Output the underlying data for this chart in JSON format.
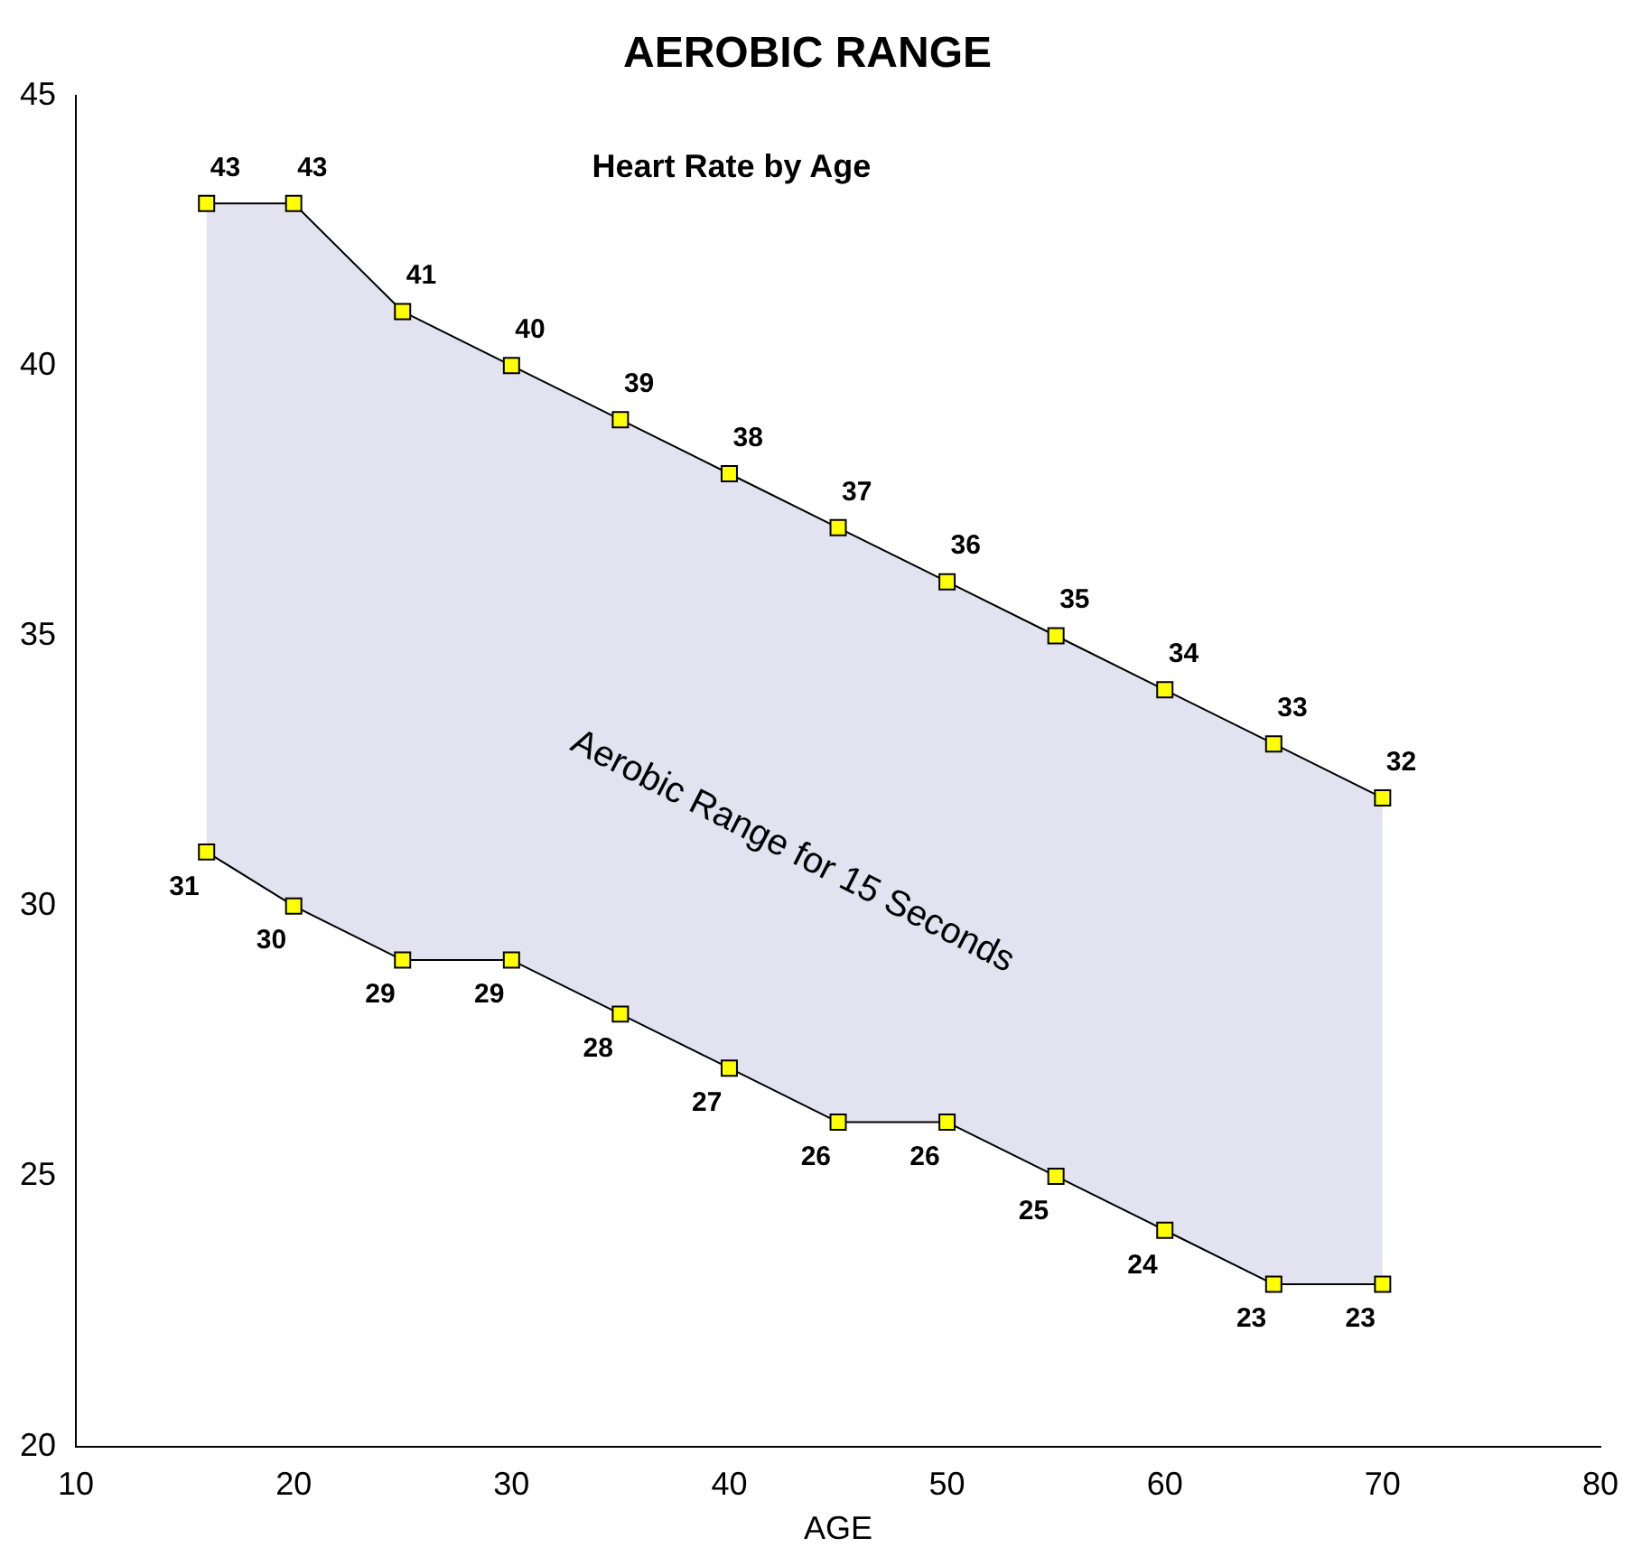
{
  "chart_data": {
    "type": "line",
    "title": "AEROBIC RANGE",
    "subtitle": "Heart Rate by Age",
    "xlabel": "AGE",
    "x": [
      16,
      20,
      25,
      30,
      35,
      40,
      45,
      50,
      55,
      60,
      65,
      70
    ],
    "series": [
      {
        "type": "area",
        "color": "#ffff00",
        "values": [
          43,
          43,
          41,
          40,
          39,
          38,
          37,
          36,
          35,
          34,
          33,
          32
        ]
      },
      {
        "color": "#ffff00",
        "values": [
          31,
          30,
          29,
          29,
          28,
          27,
          26,
          26,
          25,
          24,
          23,
          23
        ]
      }
    ],
    "xlim": [
      10,
      80
    ],
    "xticks": [
      10,
      20,
      30,
      40,
      50,
      60,
      70,
      80
    ],
    "ylim": [
      20,
      45
    ],
    "yticks": [
      20,
      25,
      30,
      35,
      40,
      45
    ],
    "annotations": [
      "Aerobic Range for 15 Seconds"
    ],
    "data_labels": true,
    "marker": "square",
    "line_style": "solid",
    "grid": false,
    "legend": false
  }
}
